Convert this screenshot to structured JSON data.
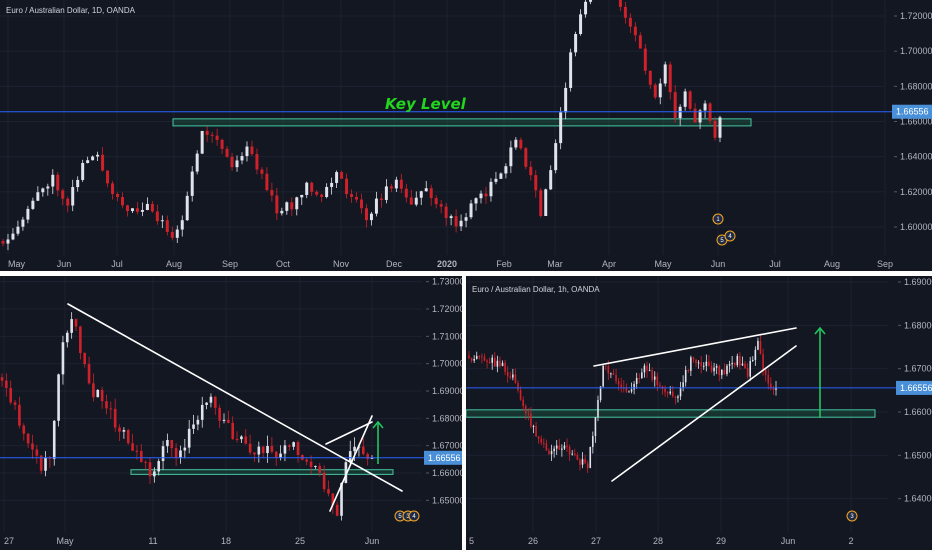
{
  "colors": {
    "background": "#131722",
    "up": "#e0e3eb",
    "down": "#d0212a",
    "axis_text": "#b2b5be",
    "title": "#d1d4dc",
    "price_line": "#2962ff",
    "price_tag": "#4a90d9",
    "zone_fill": "#1a4a3a",
    "zone_border": "#45c7a4",
    "key_level_text": "#22d61f",
    "trendline": "#ffffff",
    "arrow": "#22c55e",
    "divider": "#ffffff"
  },
  "chart_data": [
    {
      "id": "top",
      "type": "candlestick",
      "title": "Euro / Australian Dollar, 1D, OANDA",
      "timeframe": "1D",
      "x_tick_labels": [
        "May",
        "Jun",
        "Jul",
        "Aug",
        "Sep",
        "Oct",
        "Nov",
        "Dec",
        "2020",
        "Feb",
        "Mar",
        "Apr",
        "May",
        "Jun",
        "Jul",
        "Aug",
        "Sep"
      ],
      "y_tick_labels": [
        "1.72000",
        "1.70000",
        "1.68000",
        "1.66000",
        "1.64000",
        "1.62000",
        "1.60000"
      ],
      "ylim": [
        1.585,
        1.728
      ],
      "current_price": "1.66556",
      "key_zone": {
        "low": 1.6575,
        "high": 1.6615
      },
      "annotation": "Key Level",
      "events": [
        "1",
        "5",
        "4"
      ]
    },
    {
      "id": "bottom-left",
      "type": "candlestick",
      "title": "",
      "timeframe": "4H",
      "x_tick_labels": [
        "27",
        "May",
        "11",
        "18",
        "25",
        "Jun"
      ],
      "y_tick_labels": [
        "1.73000",
        "1.72000",
        "1.71000",
        "1.70000",
        "1.69000",
        "1.68000",
        "1.67000",
        "1.66000",
        "1.65000"
      ],
      "ylim": [
        1.643,
        1.733
      ],
      "current_price": "1.66556",
      "key_zone": {
        "low": 1.6595,
        "high": 1.6612
      },
      "events": [
        "5",
        "3",
        "4"
      ]
    },
    {
      "id": "bottom-right",
      "type": "candlestick",
      "title": "Euro / Australian Dollar, 1h, OANDA",
      "timeframe": "1h",
      "x_tick_labels": [
        "5",
        "26",
        "27",
        "28",
        "29",
        "Jun",
        "2"
      ],
      "y_tick_labels": [
        "1.69000",
        "1.68000",
        "1.67000",
        "1.66000",
        "1.65000",
        "1.64000"
      ],
      "ylim": [
        1.635,
        1.691
      ],
      "current_price": "1.66556",
      "key_zone": {
        "low": 1.6588,
        "high": 1.6605
      },
      "events": [
        "3"
      ]
    }
  ]
}
